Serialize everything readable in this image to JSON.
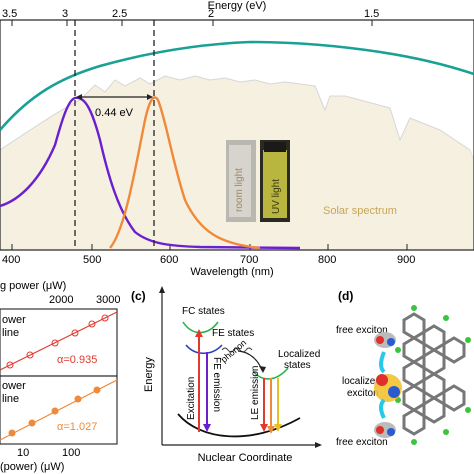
{
  "panel_a": {
    "top_axis_label": "Energy (eV)",
    "top_ticks": [
      "3.5",
      "3",
      "2.5",
      "2",
      "1.5"
    ],
    "bottom_axis_label": "Wavelength (nm)",
    "bottom_ticks": [
      "400",
      "500",
      "600",
      "700",
      "800",
      "900"
    ],
    "shift_label": "0.44 eV",
    "solar_label": "Solar spectrum",
    "vial_room_label": "room light",
    "vial_uv_label": "UV light",
    "colors": {
      "absorption": "#6a1fd0",
      "emission": "#f08a3a",
      "teal": "#1aa196",
      "solar": "#f5eedc"
    }
  },
  "panel_b": {
    "top_axis_label": "g power (μW)",
    "top_ticks": [
      "2000",
      "3000"
    ],
    "upper_text1": "ower",
    "upper_text2": "line",
    "upper_alpha": "α=0.935",
    "lower_text1": "ower",
    "lower_text2": "line",
    "lower_alpha": "α=1.027",
    "bottom_ticks": [
      "10",
      "100"
    ],
    "bottom_axis_label": "(power) (μW)",
    "colors": {
      "upper": "#e03a2f",
      "lower": "#f08a3a"
    }
  },
  "panel_c": {
    "panel_label": "(c)",
    "fc_states": "FC states",
    "fe_states": "FE states",
    "phonon": "phonon",
    "localized": "Localized",
    "states": "states",
    "excitation": "Excitation",
    "fe_emission": "FE emission",
    "le_emission": "LE emission",
    "y_label": "Energy",
    "x_label": "Nuclear Coordinate"
  },
  "panel_d": {
    "panel_label": "(d)",
    "free_top": "free exciton",
    "localized1": "localized",
    "localized2": "exciton",
    "free_bottom": "free exciton"
  }
}
